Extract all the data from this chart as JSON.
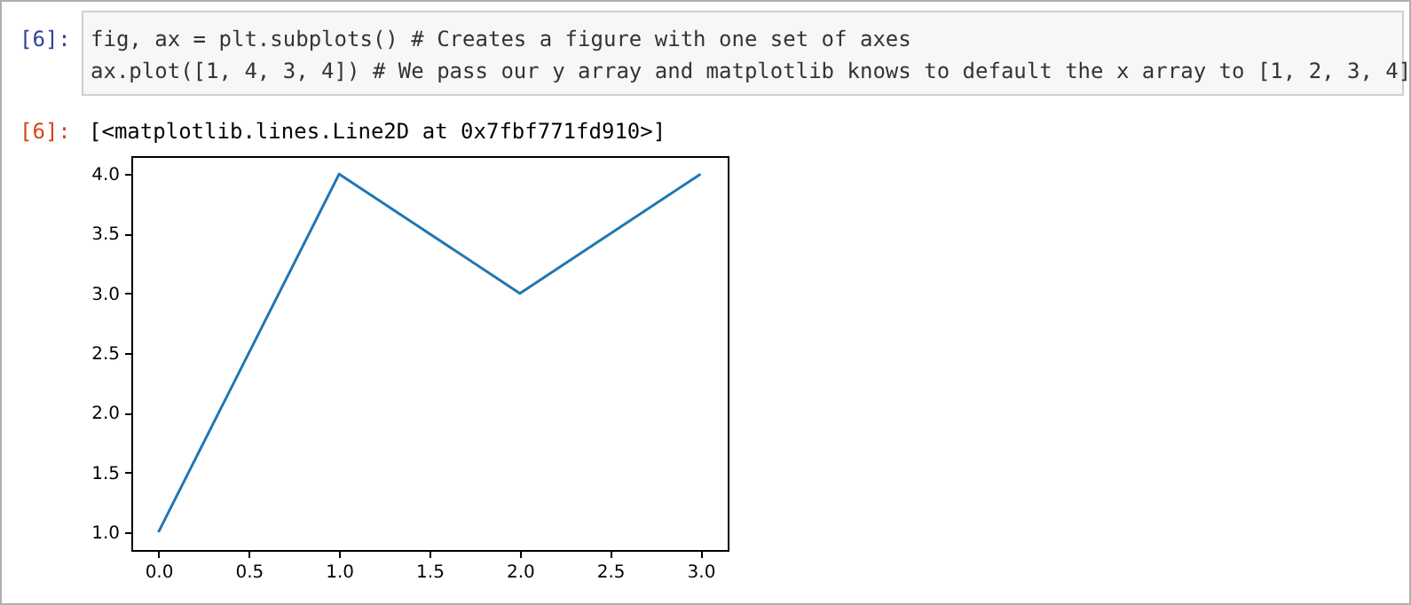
{
  "chart_data": {
    "type": "line",
    "annotations": [
      "[6]:",
      "fig, ax = plt.subplots() # Creates a figure with one set of axes",
      "ax.plot([1, 4, 3, 4]) # We pass our y array and matplotlib knows to default the x array to [1, 2, 3, 4]",
      "[6]:",
      "[<matplotlib.lines.Line2D at 0x7fbf771fd910>]"
    ],
    "x": [
      0,
      1,
      2,
      3
    ],
    "series": [
      {
        "color": "#1f77b4",
        "values": [
          1,
          4,
          3,
          4
        ]
      }
    ],
    "xlim": [
      -0.15,
      3.15
    ],
    "ylim": [
      0.85,
      4.15
    ],
    "xticks": [
      {
        "value": 0,
        "label": "0.0"
      },
      {
        "value": 0.5,
        "label": "0.5"
      },
      {
        "value": 1,
        "label": "1.0"
      },
      {
        "value": 1.5,
        "label": "1.5"
      },
      {
        "value": 2,
        "label": "2.0"
      },
      {
        "value": 2.5,
        "label": "2.5"
      },
      {
        "value": 3,
        "label": "3.0"
      }
    ],
    "yticks": [
      {
        "value": 1,
        "label": "1.0"
      },
      {
        "value": 1.5,
        "label": "1.5"
      },
      {
        "value": 2,
        "label": "2.0"
      },
      {
        "value": 2.5,
        "label": "2.5"
      },
      {
        "value": 3,
        "label": "3.0"
      },
      {
        "value": 3.5,
        "label": "3.5"
      },
      {
        "value": 4,
        "label": "4.0"
      }
    ],
    "grid": false,
    "marker": "none",
    "line_style": "solid"
  }
}
